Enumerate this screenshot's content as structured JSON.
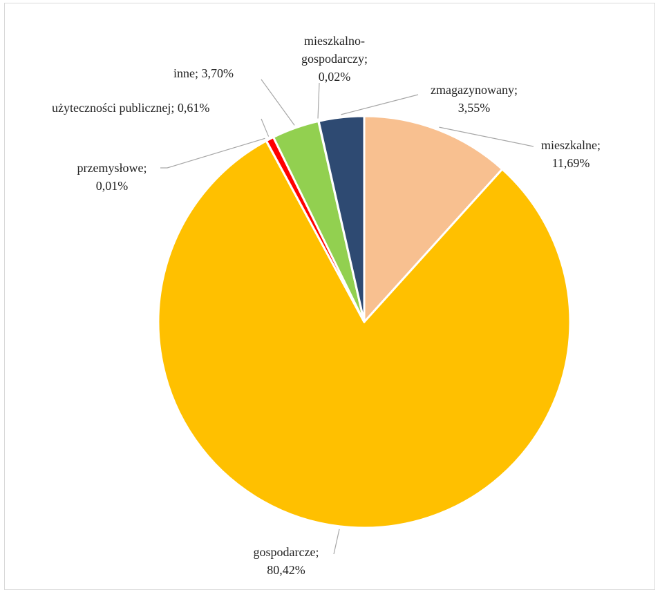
{
  "chart_data": {
    "type": "pie",
    "title": "",
    "slices": [
      {
        "name": "mieszkalne",
        "value": 11.69,
        "label": "mieszkalne;",
        "value_label": "11,69%",
        "color": "#F8C090"
      },
      {
        "name": "gospodarcze",
        "value": 80.42,
        "label": "gospodarcze;",
        "value_label": "80,42%",
        "color": "#FFC000"
      },
      {
        "name": "przemysłowe",
        "value": 0.01,
        "label": "przemysłowe;",
        "value_label": "0,01%",
        "color": "#7F7F7F"
      },
      {
        "name": "użyteczności publicznej",
        "value": 0.61,
        "label": "użyteczności publicznej; 0,61%",
        "value_label": "",
        "color": "#FF0000"
      },
      {
        "name": "inne",
        "value": 3.7,
        "label": "inne; 3,70%",
        "value_label": "",
        "color": "#92D050"
      },
      {
        "name": "mieszkalno-gospodarczy",
        "value": 0.02,
        "label": "mieszkalno-",
        "label2": "gospodarczy;",
        "value_label": "0,02%",
        "color": "#1F3864"
      },
      {
        "name": "zmagazynowany",
        "value": 3.55,
        "label": "zmagazynowany;",
        "value_label": "3,55%",
        "color": "#2E4A72"
      }
    ]
  }
}
